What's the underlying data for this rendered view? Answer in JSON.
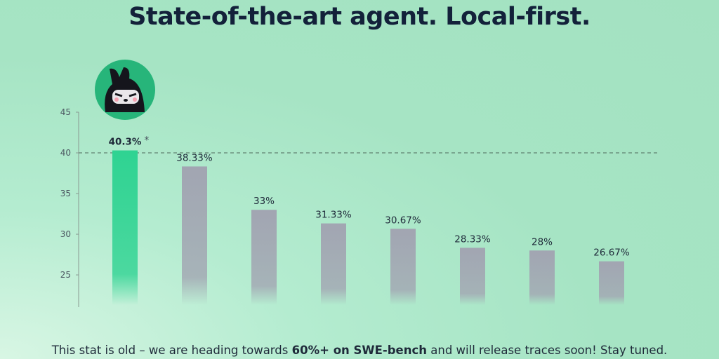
{
  "chart_data": {
    "type": "bar",
    "title": "State-of-the-art agent. Local-first.",
    "categories": [
      null,
      null,
      null,
      null,
      null,
      null,
      null,
      null
    ],
    "values": [
      40.3,
      38.33,
      33,
      31.33,
      30.67,
      28.33,
      28,
      26.67
    ],
    "value_labels": [
      "40.3%",
      "38.33%",
      "33%",
      "31.33%",
      "30.67%",
      "28.33%",
      "28%",
      "26.67%"
    ],
    "colors": [
      "#2fd392",
      "#a2a5b2",
      "#a2a5b2",
      "#a2a5b2",
      "#a2a5b2",
      "#a2a5b2",
      "#a2a5b2",
      "#a2a5b2"
    ],
    "annotation": "*",
    "dashed_line": 40,
    "ylim": [
      21.3,
      45
    ],
    "yticks": [
      25,
      30,
      35,
      40,
      45
    ]
  },
  "footer": {
    "text_before": "This stat is old – we are heading towards",
    "text_bold": "60%+ on SWE-bench",
    "text_after": "and will release traces soon! Stay tuned."
  }
}
